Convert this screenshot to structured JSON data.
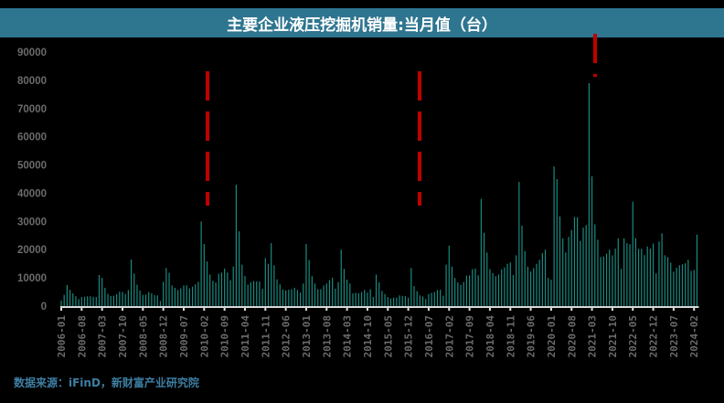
{
  "header": {
    "title": "主要企业液压挖掘机销量:当月值（台）"
  },
  "footer": {
    "source": "数据来源：iFinD，新财富产业研究院"
  },
  "colors": {
    "title_bg": "#2e7590",
    "bar": "#1a8a80",
    "axis_text": "#6b6b6b",
    "axis_line": "#d9d9d9",
    "marker": "#c00000",
    "source_text": "#3d7fa3"
  },
  "chart_data": {
    "type": "bar",
    "title": "主要企业液压挖掘机销量:当月值（台）",
    "xlabel": "",
    "ylabel": "",
    "ylim": [
      0,
      90000
    ],
    "yticks": [
      0,
      10000,
      20000,
      30000,
      40000,
      50000,
      60000,
      70000,
      80000,
      90000
    ],
    "xtick_labels": [
      "2006-01",
      "2006-08",
      "2007-03",
      "2007-10",
      "2008-05",
      "2008-12",
      "2009-07",
      "2010-02",
      "2010-09",
      "2011-04",
      "2011-11",
      "2012-06",
      "2013-01",
      "2013-08",
      "2014-03",
      "2014-10",
      "2015-05",
      "2015-12",
      "2016-07",
      "2017-02",
      "2017-09",
      "2018-04",
      "2018-11",
      "2019-06",
      "2020-01",
      "2020-08",
      "2021-03",
      "2021-10",
      "2022-05",
      "2022-12",
      "2023-07",
      "2024-02"
    ],
    "start_month": "2006-01",
    "grid": false,
    "legend": null,
    "annotations": [
      {
        "type": "red-dashed-vertical-line",
        "near": "2010-03"
      },
      {
        "type": "red-dashed-vertical-line",
        "near": "2016-03"
      },
      {
        "type": "red-dashed-vertical-line",
        "near": "2021-03"
      }
    ],
    "values": [
      2000,
      4000,
      7500,
      5800,
      4500,
      3500,
      2500,
      3200,
      3300,
      3500,
      3500,
      3300,
      3200,
      11000,
      10000,
      6500,
      4300,
      3600,
      3700,
      4200,
      5100,
      5000,
      4300,
      5700,
      16500,
      11500,
      7600,
      5500,
      4000,
      4100,
      5000,
      4500,
      3900,
      3800,
      1800,
      8600,
      13500,
      11800,
      7300,
      6500,
      5700,
      6300,
      7300,
      7400,
      6300,
      6900,
      7700,
      8600,
      30000,
      22000,
      15800,
      11200,
      9000,
      8400,
      11500,
      11900,
      13300,
      11900,
      9200,
      14000,
      43000,
      26500,
      14700,
      10700,
      7600,
      8500,
      8900,
      8800,
      8700,
      6100,
      17000,
      15000,
      22300,
      14500,
      9500,
      7700,
      5900,
      5600,
      5800,
      6000,
      6500,
      5700,
      4800,
      8000,
      22000,
      16300,
      10600,
      8000,
      6000,
      6000,
      7300,
      8000,
      9200,
      10100,
      6200,
      8500,
      20000,
      13200,
      9400,
      8000,
      4500,
      4700,
      4600,
      5000,
      5700,
      4800,
      6000,
      3200,
      11200,
      8400,
      5400,
      4300,
      3200,
      2700,
      3000,
      3000,
      3800,
      3600,
      3500,
      3000,
      13500,
      7100,
      5300,
      3800,
      3400,
      2500,
      4300,
      4700,
      5000,
      5700,
      5800,
      3700,
      14700,
      21400,
      14000,
      10000,
      8400,
      7500,
      8600,
      10800,
      10900,
      13100,
      13300,
      10900,
      38000,
      26000,
      19000,
      13100,
      11700,
      10600,
      11200,
      13000,
      13700,
      15000,
      15500,
      11000,
      18000,
      44000,
      28500,
      19500,
      14000,
      12300,
      13500,
      15000,
      16400,
      18800,
      20000,
      10000,
      9400,
      49500,
      45000,
      31800,
      24000,
      19000,
      24500,
      27000,
      31600,
      31500,
      23100,
      27800,
      28700,
      79000,
      46000,
      29000,
      23500,
      17400,
      17600,
      18600,
      20000,
      18000,
      20400,
      24000,
      13200,
      24000,
      22300,
      22000,
      37000,
      24100,
      20300,
      20300,
      18100,
      21100,
      20400,
      22200,
      11600,
      22900,
      25800,
      18000,
      17400,
      15400,
      12200,
      13600,
      14500,
      14800,
      15200,
      16400,
      12500,
      12800,
      25300
    ]
  }
}
